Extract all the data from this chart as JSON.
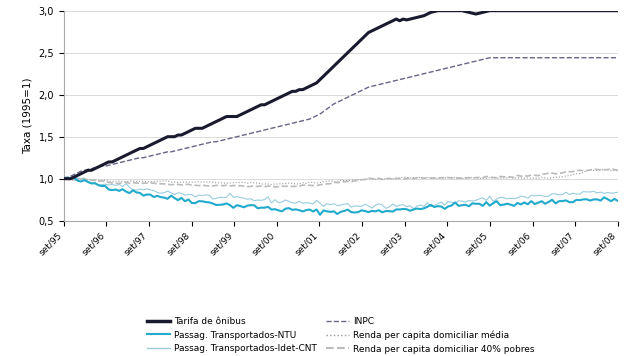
{
  "ylabel": "Taxa (1995=1)",
  "ylim": [
    0.5,
    3.0
  ],
  "yticks": [
    0.5,
    1.0,
    1.5,
    2.0,
    2.5,
    3.0
  ],
  "xtick_labels": [
    "set/95",
    "set/96",
    "set/97",
    "set/98",
    "set/99",
    "set/00",
    "set/01",
    "set/02",
    "set/03",
    "set/04",
    "set/05",
    "set/06",
    "set/07",
    "set/08"
  ],
  "tarifa_onibus": [
    1.0,
    1.0,
    1.0,
    1.02,
    1.04,
    1.06,
    1.08,
    1.1,
    1.1,
    1.12,
    1.14,
    1.16,
    1.18,
    1.2,
    1.2,
    1.22,
    1.24,
    1.26,
    1.28,
    1.3,
    1.32,
    1.34,
    1.36,
    1.36,
    1.38,
    1.4,
    1.42,
    1.44,
    1.46,
    1.48,
    1.5,
    1.5,
    1.5,
    1.52,
    1.52,
    1.54,
    1.56,
    1.58,
    1.6,
    1.6,
    1.6,
    1.62,
    1.64,
    1.66,
    1.68,
    1.7,
    1.72,
    1.74,
    1.74,
    1.74,
    1.74,
    1.76,
    1.78,
    1.8,
    1.82,
    1.84,
    1.86,
    1.88,
    1.88,
    1.9,
    1.92,
    1.94,
    1.96,
    1.98,
    2.0,
    2.02,
    2.04,
    2.04,
    2.06,
    2.06,
    2.08,
    2.1,
    2.12,
    2.14,
    2.18,
    2.22,
    2.26,
    2.3,
    2.34,
    2.38,
    2.42,
    2.46,
    2.5,
    2.54,
    2.58,
    2.62,
    2.66,
    2.7,
    2.74,
    2.76,
    2.78,
    2.8,
    2.82,
    2.84,
    2.86,
    2.88,
    2.9,
    2.88,
    2.9,
    2.89,
    2.9,
    2.91,
    2.92,
    2.93,
    2.94,
    2.96,
    2.98,
    2.99,
    3.0,
    3.0,
    3.0,
    3.0,
    3.0,
    3.0,
    3.0,
    3.0,
    2.99,
    2.98,
    2.97,
    2.96,
    2.97,
    2.98,
    2.99,
    3.0,
    3.0,
    3.0,
    3.0,
    3.0,
    3.0,
    3.0,
    3.0,
    3.0,
    3.0,
    3.0,
    3.0,
    3.0,
    3.0,
    3.0,
    3.0,
    3.0,
    3.0,
    3.0,
    3.0,
    3.0,
    3.0,
    3.0,
    3.0,
    3.0,
    3.0,
    3.0,
    3.0,
    3.0,
    3.0,
    3.0,
    3.0,
    3.0,
    3.0,
    3.0,
    3.0,
    3.0,
    3.0
  ],
  "inpc": [
    1.0,
    1.01,
    1.03,
    1.05,
    1.07,
    1.09,
    1.1,
    1.11,
    1.12,
    1.13,
    1.14,
    1.15,
    1.15,
    1.16,
    1.17,
    1.18,
    1.19,
    1.2,
    1.21,
    1.22,
    1.23,
    1.24,
    1.25,
    1.25,
    1.26,
    1.27,
    1.28,
    1.29,
    1.3,
    1.31,
    1.32,
    1.32,
    1.33,
    1.34,
    1.35,
    1.36,
    1.37,
    1.38,
    1.39,
    1.4,
    1.41,
    1.42,
    1.43,
    1.44,
    1.44,
    1.45,
    1.46,
    1.47,
    1.48,
    1.49,
    1.5,
    1.51,
    1.52,
    1.53,
    1.54,
    1.55,
    1.56,
    1.57,
    1.58,
    1.59,
    1.6,
    1.61,
    1.62,
    1.63,
    1.64,
    1.65,
    1.66,
    1.67,
    1.68,
    1.69,
    1.7,
    1.71,
    1.73,
    1.75,
    1.77,
    1.8,
    1.83,
    1.86,
    1.89,
    1.91,
    1.93,
    1.95,
    1.97,
    1.99,
    2.01,
    2.03,
    2.05,
    2.07,
    2.09,
    2.1,
    2.11,
    2.12,
    2.13,
    2.14,
    2.15,
    2.16,
    2.17,
    2.18,
    2.19,
    2.2,
    2.21,
    2.22,
    2.23,
    2.24,
    2.25,
    2.26,
    2.27,
    2.28,
    2.29,
    2.3,
    2.31,
    2.32,
    2.33,
    2.34,
    2.35,
    2.36,
    2.37,
    2.38,
    2.39,
    2.4,
    2.41,
    2.42,
    2.43,
    2.44,
    2.44,
    2.44,
    2.44,
    2.44,
    2.44,
    2.44,
    2.44,
    2.44,
    2.44,
    2.44,
    2.44,
    2.44,
    2.44,
    2.44,
    2.44,
    2.44,
    2.44,
    2.44,
    2.44,
    2.44,
    2.44,
    2.44,
    2.44,
    2.44,
    2.44,
    2.44,
    2.44,
    2.44,
    2.44,
    2.44,
    2.44,
    2.44,
    2.44,
    2.44,
    2.44,
    2.44,
    2.44
  ],
  "passag_ntu": [
    1.0,
    1.0,
    1.0,
    0.99,
    0.98,
    0.97,
    0.96,
    0.95,
    0.95,
    0.94,
    0.93,
    0.92,
    0.91,
    0.9,
    0.89,
    0.88,
    0.87,
    0.87,
    0.86,
    0.85,
    0.84,
    0.84,
    0.83,
    0.82,
    0.82,
    0.81,
    0.8,
    0.79,
    0.79,
    0.78,
    0.77,
    0.77,
    0.77,
    0.76,
    0.76,
    0.75,
    0.75,
    0.74,
    0.73,
    0.73,
    0.72,
    0.72,
    0.72,
    0.71,
    0.71,
    0.7,
    0.7,
    0.69,
    0.68,
    0.68,
    0.68,
    0.68,
    0.67,
    0.67,
    0.67,
    0.67,
    0.66,
    0.66,
    0.65,
    0.65,
    0.64,
    0.64,
    0.64,
    0.63,
    0.63,
    0.63,
    0.63,
    0.62,
    0.62,
    0.62,
    0.62,
    0.61,
    0.61,
    0.61,
    0.61,
    0.61,
    0.61,
    0.61,
    0.61,
    0.61,
    0.61,
    0.61,
    0.61,
    0.61,
    0.61,
    0.61,
    0.61,
    0.61,
    0.61,
    0.61,
    0.61,
    0.61,
    0.61,
    0.62,
    0.62,
    0.63,
    0.63,
    0.63,
    0.64,
    0.64,
    0.64,
    0.64,
    0.65,
    0.65,
    0.65,
    0.66,
    0.66,
    0.66,
    0.67,
    0.67,
    0.67,
    0.67,
    0.68,
    0.68,
    0.68,
    0.68,
    0.69,
    0.69,
    0.69,
    0.69,
    0.69,
    0.69,
    0.7,
    0.7,
    0.7,
    0.7,
    0.7,
    0.7,
    0.7,
    0.7,
    0.7,
    0.71,
    0.71,
    0.71,
    0.71,
    0.71,
    0.71,
    0.72,
    0.72,
    0.72,
    0.72,
    0.73,
    0.73,
    0.73,
    0.73,
    0.73,
    0.74,
    0.74,
    0.74,
    0.74,
    0.75,
    0.75,
    0.75,
    0.75,
    0.75,
    0.75,
    0.75,
    0.75,
    0.75,
    0.75,
    0.75
  ],
  "passag_idet": [
    1.0,
    1.01,
    1.02,
    1.01,
    1.0,
    0.99,
    0.98,
    0.97,
    0.96,
    0.95,
    0.94,
    0.93,
    0.93,
    0.92,
    0.92,
    0.92,
    0.91,
    0.91,
    0.9,
    0.89,
    0.88,
    0.88,
    0.87,
    0.87,
    0.87,
    0.86,
    0.86,
    0.85,
    0.85,
    0.84,
    0.84,
    0.83,
    0.83,
    0.83,
    0.82,
    0.82,
    0.81,
    0.81,
    0.8,
    0.8,
    0.79,
    0.79,
    0.79,
    0.78,
    0.78,
    0.77,
    0.77,
    0.77,
    0.77,
    0.77,
    0.77,
    0.76,
    0.76,
    0.76,
    0.75,
    0.75,
    0.75,
    0.75,
    0.75,
    0.75,
    0.74,
    0.74,
    0.74,
    0.73,
    0.73,
    0.73,
    0.73,
    0.72,
    0.72,
    0.72,
    0.71,
    0.71,
    0.71,
    0.71,
    0.7,
    0.7,
    0.7,
    0.7,
    0.69,
    0.69,
    0.69,
    0.69,
    0.69,
    0.68,
    0.68,
    0.68,
    0.68,
    0.67,
    0.67,
    0.67,
    0.67,
    0.67,
    0.67,
    0.67,
    0.67,
    0.68,
    0.68,
    0.68,
    0.68,
    0.68,
    0.68,
    0.69,
    0.69,
    0.69,
    0.69,
    0.69,
    0.69,
    0.69,
    0.7,
    0.7,
    0.71,
    0.71,
    0.72,
    0.72,
    0.73,
    0.73,
    0.73,
    0.74,
    0.74,
    0.74,
    0.75,
    0.75,
    0.76,
    0.76,
    0.76,
    0.76,
    0.77,
    0.77,
    0.77,
    0.77,
    0.77,
    0.78,
    0.78,
    0.78,
    0.78,
    0.79,
    0.79,
    0.79,
    0.79,
    0.8,
    0.8,
    0.81,
    0.81,
    0.81,
    0.81,
    0.82,
    0.82,
    0.82,
    0.82,
    0.82,
    0.83,
    0.83,
    0.83,
    0.83,
    0.83,
    0.83,
    0.83,
    0.83,
    0.83,
    0.83,
    0.83
  ],
  "renda_media": [
    1.0,
    1.0,
    0.99,
    0.99,
    0.99,
    0.99,
    0.99,
    0.99,
    0.99,
    0.98,
    0.98,
    0.98,
    0.98,
    0.97,
    0.97,
    0.97,
    0.97,
    0.97,
    0.97,
    0.97,
    0.97,
    0.97,
    0.97,
    0.97,
    0.97,
    0.97,
    0.97,
    0.97,
    0.97,
    0.97,
    0.97,
    0.96,
    0.96,
    0.96,
    0.96,
    0.96,
    0.96,
    0.96,
    0.96,
    0.96,
    0.96,
    0.96,
    0.96,
    0.96,
    0.95,
    0.95,
    0.95,
    0.95,
    0.95,
    0.95,
    0.95,
    0.95,
    0.95,
    0.95,
    0.95,
    0.95,
    0.94,
    0.94,
    0.94,
    0.94,
    0.94,
    0.94,
    0.94,
    0.94,
    0.94,
    0.94,
    0.94,
    0.94,
    0.94,
    0.95,
    0.95,
    0.95,
    0.95,
    0.95,
    0.96,
    0.96,
    0.97,
    0.97,
    0.97,
    0.97,
    0.98,
    0.98,
    0.98,
    0.98,
    0.99,
    0.99,
    0.99,
    0.99,
    1.0,
    1.0,
    1.0,
    1.0,
    1.0,
    1.0,
    1.0,
    1.0,
    1.0,
    1.01,
    1.01,
    1.01,
    1.01,
    1.01,
    1.01,
    1.01,
    1.01,
    1.01,
    1.01,
    1.01,
    1.01,
    1.01,
    1.01,
    1.01,
    1.01,
    1.01,
    1.01,
    1.01,
    1.01,
    1.01,
    1.01,
    1.01,
    1.01,
    1.01,
    1.01,
    1.01,
    1.01,
    1.01,
    1.01,
    1.01,
    1.01,
    1.01,
    1.01,
    1.01,
    1.01,
    1.01,
    1.01,
    1.01,
    1.01,
    1.01,
    1.01,
    1.01,
    1.01,
    1.01,
    1.02,
    1.02,
    1.02,
    1.03,
    1.04,
    1.05,
    1.06,
    1.07,
    1.08,
    1.09,
    1.1,
    1.1,
    1.1,
    1.1,
    1.1,
    1.1,
    1.1,
    1.1,
    1.1
  ],
  "renda_40": [
    1.0,
    1.0,
    0.99,
    0.99,
    0.99,
    0.99,
    0.99,
    0.98,
    0.98,
    0.98,
    0.97,
    0.97,
    0.96,
    0.96,
    0.95,
    0.95,
    0.95,
    0.95,
    0.95,
    0.95,
    0.95,
    0.95,
    0.95,
    0.95,
    0.95,
    0.95,
    0.95,
    0.94,
    0.94,
    0.94,
    0.94,
    0.93,
    0.93,
    0.93,
    0.93,
    0.93,
    0.93,
    0.93,
    0.92,
    0.92,
    0.92,
    0.92,
    0.92,
    0.92,
    0.92,
    0.92,
    0.92,
    0.92,
    0.92,
    0.92,
    0.92,
    0.92,
    0.91,
    0.91,
    0.91,
    0.91,
    0.91,
    0.91,
    0.91,
    0.91,
    0.91,
    0.91,
    0.91,
    0.91,
    0.91,
    0.91,
    0.91,
    0.91,
    0.91,
    0.92,
    0.92,
    0.92,
    0.92,
    0.92,
    0.93,
    0.93,
    0.94,
    0.94,
    0.95,
    0.95,
    0.96,
    0.96,
    0.97,
    0.97,
    0.98,
    0.98,
    0.99,
    0.99,
    1.0,
    1.0,
    1.0,
    1.0,
    1.0,
    1.0,
    1.0,
    1.0,
    1.0,
    1.0,
    1.0,
    1.0,
    1.0,
    1.0,
    1.01,
    1.01,
    1.01,
    1.01,
    1.01,
    1.01,
    1.01,
    1.01,
    1.01,
    1.01,
    1.01,
    1.01,
    1.01,
    1.01,
    1.01,
    1.01,
    1.01,
    1.01,
    1.01,
    1.01,
    1.02,
    1.02,
    1.02,
    1.02,
    1.02,
    1.02,
    1.02,
    1.02,
    1.02,
    1.03,
    1.03,
    1.03,
    1.03,
    1.04,
    1.04,
    1.04,
    1.05,
    1.05,
    1.06,
    1.06,
    1.06,
    1.07,
    1.07,
    1.08,
    1.08,
    1.09,
    1.09,
    1.1,
    1.1,
    1.1,
    1.11,
    1.11,
    1.11,
    1.11,
    1.11,
    1.11,
    1.11,
    1.11,
    1.11
  ],
  "colors": {
    "tarifa": "#1a1a2e",
    "inpc": "#666688",
    "passag_ntu": "#22aacc",
    "passag_idet": "#99ccdd",
    "renda_media": "#999999",
    "renda_40": "#bbbbbb"
  }
}
